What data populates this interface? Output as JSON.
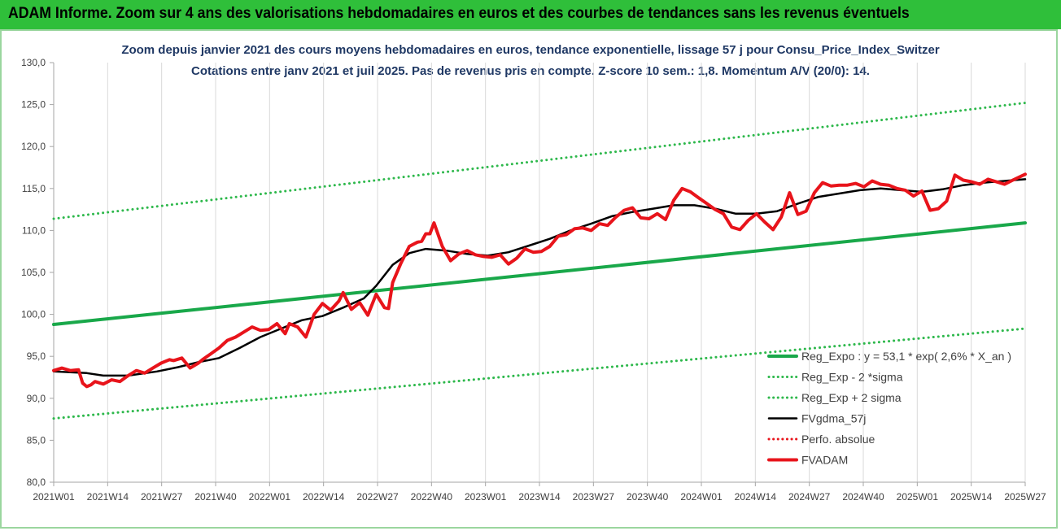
{
  "header": {
    "banner": "ADAM Informe. Zoom sur 4 ans des valorisations hebdomadaires en euros et des courbes de tendances sans les revenus éventuels"
  },
  "colors": {
    "banner_bg": "#2fbf3a",
    "trend_green": "#19a84a",
    "band_green": "#2db84b",
    "fvadam_red": "#e8141b",
    "fvgdma_black": "#000000",
    "perfo_red": "#e8141b",
    "title_blue": "#1f3864"
  },
  "chart_data": {
    "type": "line",
    "title": "Zoom depuis janvier 2021 des cours moyens hebdomadaires en euros, tendance exponentielle, lissage 57 j pour Consu_Price_Index_Switzer",
    "subtitle": "Cotations entre janv 2021 et juil 2025. Pas de revenus pris en compte. Z-score 10 sem.: 1,8. Momentum A/V (20/0): 14.",
    "xlabel": "",
    "ylabel": "",
    "ylim": [
      80,
      130
    ],
    "yticks": [
      "80,0",
      "85,0",
      "90,0",
      "95,0",
      "100,0",
      "105,0",
      "110,0",
      "115,0",
      "120,0",
      "125,0",
      "130,0"
    ],
    "xticks": [
      "2021W01",
      "2021W14",
      "2021W27",
      "2021W40",
      "2022W01",
      "2022W14",
      "2022W27",
      "2022W40",
      "2023W01",
      "2023W14",
      "2023W27",
      "2023W40",
      "2024W01",
      "2024W14",
      "2024W27",
      "2024W40",
      "2025W01",
      "2025W14",
      "2025W27"
    ],
    "grid": "vertical",
    "legend_position": "bottom-right",
    "x_range_weeks": [
      0,
      235
    ],
    "series": [
      {
        "name": "Reg_Expo : y = 53,1 * exp( 2,6% *  X_an )",
        "style": "solid",
        "color": "#19a84a",
        "width": 4,
        "x": [
          0,
          235
        ],
        "values": [
          98.8,
          110.9
        ]
      },
      {
        "name": "Reg_Exp - 2 *sigma",
        "style": "dotted",
        "color": "#2db84b",
        "width": 3,
        "x": [
          0,
          235
        ],
        "values": [
          87.6,
          98.3
        ]
      },
      {
        "name": "Reg_Exp + 2 sigma",
        "style": "dotted",
        "color": "#2db84b",
        "width": 3,
        "x": [
          0,
          235
        ],
        "values": [
          111.4,
          125.2
        ]
      },
      {
        "name": "FVgdma_57j",
        "style": "solid",
        "color": "#000000",
        "width": 2.5,
        "x": [
          0,
          8,
          12,
          18,
          25,
          30,
          35,
          40,
          45,
          50,
          55,
          60,
          65,
          70,
          75,
          78,
          82,
          86,
          90,
          95,
          100,
          105,
          110,
          115,
          120,
          125,
          130,
          135,
          140,
          145,
          150,
          155,
          160,
          165,
          170,
          175,
          180,
          185,
          190,
          195,
          200,
          205,
          210,
          215,
          220,
          225,
          230,
          235
        ],
        "values": [
          93.2,
          93.0,
          92.7,
          92.7,
          93.2,
          93.7,
          94.3,
          94.8,
          96.0,
          97.3,
          98.3,
          99.3,
          99.8,
          100.8,
          101.9,
          103.4,
          105.9,
          107.3,
          107.8,
          107.6,
          107.2,
          107.0,
          107.4,
          108.2,
          109.0,
          110.0,
          110.8,
          111.7,
          112.2,
          112.6,
          113.0,
          113.0,
          112.6,
          112.0,
          112.0,
          112.3,
          113.2,
          114.0,
          114.4,
          114.8,
          115.0,
          114.8,
          114.6,
          114.9,
          115.4,
          115.7,
          115.9,
          116.1
        ]
      },
      {
        "name": "Perfo. absolue",
        "style": "dotted",
        "color": "#e8141b",
        "width": 2,
        "x": [],
        "values": []
      },
      {
        "name": "FVADAM",
        "style": "solid",
        "color": "#e8141b",
        "width": 4,
        "x": [
          0,
          2,
          4,
          6,
          7,
          8,
          9,
          10,
          12,
          14,
          16,
          18,
          20,
          22,
          24,
          26,
          28,
          29,
          31,
          33,
          35,
          36,
          38,
          40,
          42,
          44,
          46,
          48,
          50,
          52,
          54,
          56,
          57,
          59,
          61,
          63,
          65,
          67,
          69,
          70,
          72,
          74,
          76,
          78,
          80,
          81,
          82,
          84,
          86,
          88,
          89,
          90,
          91,
          92,
          94,
          96,
          98,
          100,
          102,
          104,
          106,
          108,
          110,
          112,
          114,
          116,
          118,
          120,
          122,
          124,
          126,
          128,
          130,
          132,
          134,
          136,
          138,
          140,
          142,
          144,
          146,
          148,
          150,
          152,
          154,
          156,
          158,
          160,
          162,
          164,
          166,
          168,
          170,
          172,
          174,
          176,
          178,
          180,
          182,
          184,
          186,
          188,
          190,
          192,
          194,
          196,
          198,
          200,
          202,
          204,
          206,
          208,
          210,
          212,
          214,
          216,
          218,
          220,
          222,
          224,
          226,
          228,
          230,
          232,
          235
        ],
        "values": [
          93.3,
          93.6,
          93.3,
          93.4,
          91.8,
          91.4,
          91.6,
          92.0,
          91.7,
          92.2,
          92.0,
          92.7,
          93.3,
          93.0,
          93.6,
          94.2,
          94.6,
          94.5,
          94.8,
          93.6,
          94.2,
          94.6,
          95.3,
          96.0,
          96.9,
          97.3,
          97.9,
          98.5,
          98.1,
          98.2,
          98.9,
          97.7,
          98.9,
          98.5,
          97.3,
          100.0,
          101.3,
          100.5,
          101.6,
          102.6,
          100.6,
          101.4,
          99.9,
          102.4,
          100.8,
          100.7,
          103.8,
          106.1,
          108.1,
          108.6,
          108.7,
          109.6,
          109.6,
          110.9,
          108.1,
          106.4,
          107.2,
          107.6,
          107.1,
          106.9,
          106.8,
          107.1,
          106.0,
          106.7,
          107.8,
          107.4,
          107.5,
          108.1,
          109.3,
          109.5,
          110.2,
          110.3,
          110.0,
          110.8,
          110.6,
          111.6,
          112.4,
          112.7,
          111.5,
          111.4,
          112.0,
          111.3,
          113.6,
          115.0,
          114.6,
          113.9,
          113.2,
          112.5,
          112.0,
          110.4,
          110.1,
          111.2,
          112.0,
          111.0,
          110.1,
          111.6,
          114.5,
          111.9,
          112.3,
          114.5,
          115.7,
          115.3,
          115.4,
          115.4,
          115.6,
          115.2,
          115.9,
          115.5,
          115.4,
          115.0,
          114.8,
          114.1,
          114.7,
          112.4,
          112.6,
          113.5,
          116.6,
          116.0,
          115.8,
          115.5,
          116.1,
          115.8,
          115.5,
          116.0,
          116.7
        ]
      }
    ]
  }
}
